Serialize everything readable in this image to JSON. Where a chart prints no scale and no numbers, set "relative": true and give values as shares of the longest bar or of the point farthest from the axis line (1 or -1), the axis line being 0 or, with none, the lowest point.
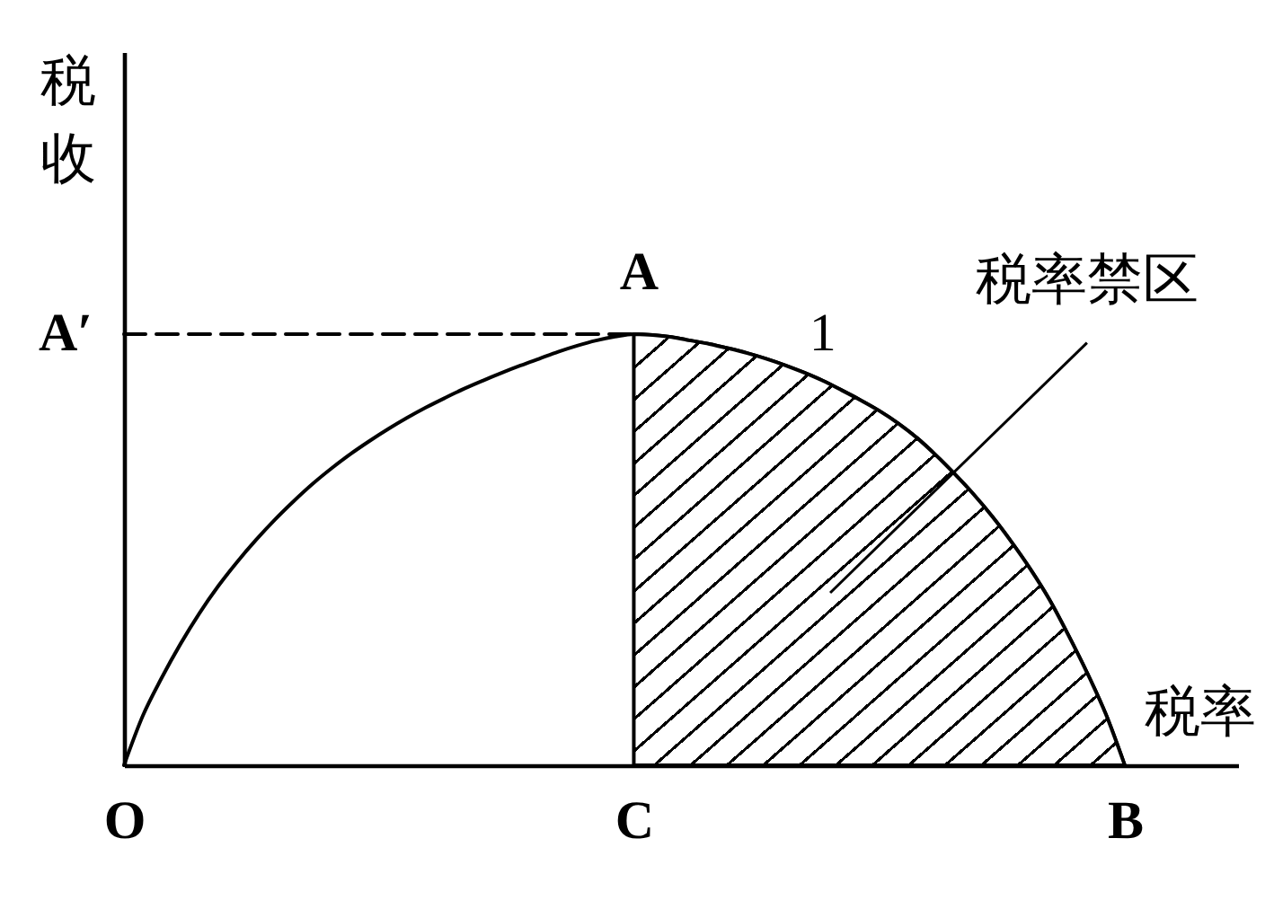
{
  "chart_data": {
    "type": "line",
    "relative": true,
    "xlabel": "税率",
    "ylabel": "税收",
    "categories": [
      "O",
      null,
      null,
      null,
      null,
      null,
      null,
      null,
      null,
      null,
      null,
      null,
      null,
      null,
      null,
      null,
      null,
      null,
      null,
      null,
      null,
      null,
      null,
      null,
      null,
      null,
      null,
      "C",
      null,
      null,
      null,
      null,
      null,
      null,
      null,
      null,
      null,
      null,
      null,
      null,
      null,
      null,
      null,
      null,
      null,
      null,
      null,
      null,
      null,
      null,
      null,
      null,
      null,
      "B",
      null,
      null,
      null,
      null,
      null,
      null
    ],
    "series": [
      {
        "name": "1",
        "color": "#000000",
        "values": [
          0,
          0.115,
          0.203,
          0.282,
          0.353,
          0.416,
          0.472,
          0.523,
          0.57,
          0.613,
          0.653,
          0.689,
          0.722,
          0.752,
          0.78,
          0.806,
          0.83,
          0.852,
          0.873,
          0.892,
          0.91,
          0.927,
          0.943,
          0.959,
          0.973,
          0.985,
          0.994,
          1,
          0.998,
          0.993,
          0.985,
          0.977,
          0.967,
          0.956,
          0.943,
          0.928,
          0.911,
          0.892,
          0.87,
          0.847,
          0.822,
          0.793,
          0.759,
          0.719,
          0.675,
          0.628,
          0.576,
          0.518,
          0.455,
          0.385,
          0.303,
          0.215,
          0.118,
          0,
          null,
          null,
          null,
          null,
          null,
          null
        ]
      },
      {
        "name": "税率禁区",
        "type": "area",
        "color": "#000000",
        "values": [
          null,
          null,
          null,
          null,
          null,
          null,
          null,
          null,
          null,
          null,
          null,
          null,
          null,
          null,
          null,
          null,
          null,
          null,
          null,
          null,
          null,
          null,
          null,
          null,
          null,
          null,
          null,
          1,
          0.998,
          0.993,
          0.985,
          0.977,
          0.967,
          0.956,
          0.943,
          0.928,
          0.911,
          0.892,
          0.87,
          0.847,
          0.822,
          0.793,
          0.759,
          0.719,
          0.675,
          0.628,
          0.576,
          0.518,
          0.455,
          0.385,
          0.303,
          0.215,
          0.118,
          0,
          null,
          null,
          null,
          null,
          null,
          null
        ]
      },
      {
        "type": "line",
        "color": "#000000",
        "line_style": "dashed",
        "values": [
          1,
          1,
          1,
          1,
          1,
          1,
          1,
          1,
          1,
          1,
          1,
          1,
          1,
          1,
          1,
          1,
          1,
          1,
          1,
          1,
          1,
          1,
          1,
          1,
          1,
          1,
          1,
          1,
          null,
          null,
          null,
          null,
          null,
          null,
          null,
          null,
          null,
          null,
          null,
          null,
          null,
          null,
          null,
          null,
          null,
          null,
          null,
          null,
          null,
          null,
          null,
          null,
          null,
          null,
          null,
          null,
          null,
          null,
          null,
          null
        ]
      }
    ],
    "annotations": [
      {
        "text": "A",
        "x": "C",
        "y": 1
      },
      {
        "text": "A′",
        "x": "O",
        "y": 1
      }
    ]
  }
}
